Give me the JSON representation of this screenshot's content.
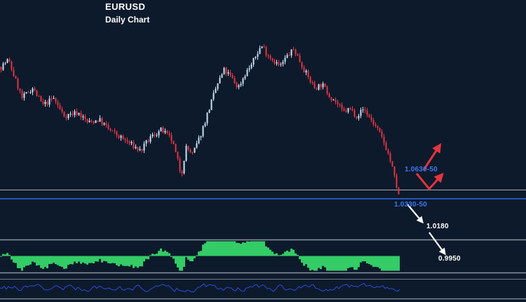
{
  "title": {
    "symbol": "EURUSD",
    "timeframe": "Daily Chart"
  },
  "labels": {
    "resistance": "1.0630-50",
    "support": "1.0330-50",
    "target1": "1.0180",
    "target2": "0.9950"
  },
  "colors": {
    "background": "#0d1a2b",
    "bull_candle": "#c7e2f8",
    "bear_candle": "#e23440",
    "histogram": "#33cc66",
    "bottom_line": "#2c4bd8",
    "support_line": "#2e6be6",
    "grid_line": "#8b94a1",
    "light_line": "#c2c9d4",
    "label_blue": "#3b76f0",
    "label_white": "#ffffff",
    "arrow_red": "#e23440",
    "arrow_white": "#ffffff",
    "title_text": "#ffffff"
  },
  "chart_data": {
    "type": "candlestick",
    "symbol": "EURUSD",
    "timeframe": "daily",
    "bar_count": 190,
    "y_axis": {
      "price_max": 1.218,
      "price_min": 1.019
    },
    "price_waypoints": [
      [
        0.0,
        1.1855
      ],
      [
        0.018,
        1.1936
      ],
      [
        0.053,
        1.149
      ],
      [
        0.079,
        1.1611
      ],
      [
        0.105,
        1.1409
      ],
      [
        0.132,
        1.149
      ],
      [
        0.158,
        1.1287
      ],
      [
        0.193,
        1.1328
      ],
      [
        0.219,
        1.1206
      ],
      [
        0.246,
        1.1246
      ],
      [
        0.272,
        1.1125
      ],
      [
        0.298,
        1.1044
      ],
      [
        0.325,
        1.0963
      ],
      [
        0.351,
        1.0881
      ],
      [
        0.377,
        1.1044
      ],
      [
        0.404,
        1.1125
      ],
      [
        0.43,
        1.1003
      ],
      [
        0.447,
        1.0719
      ],
      [
        0.453,
        1.0598
      ],
      [
        0.465,
        1.0922
      ],
      [
        0.482,
        1.0841
      ],
      [
        0.5,
        1.1044
      ],
      [
        0.526,
        1.1409
      ],
      [
        0.544,
        1.1652
      ],
      [
        0.561,
        1.1814
      ],
      [
        0.579,
        1.1733
      ],
      [
        0.596,
        1.1611
      ],
      [
        0.614,
        1.1774
      ],
      [
        0.632,
        1.1895
      ],
      [
        0.649,
        1.2058
      ],
      [
        0.658,
        1.2098
      ],
      [
        0.667,
        1.2017
      ],
      [
        0.684,
        1.1936
      ],
      [
        0.702,
        1.1855
      ],
      [
        0.719,
        1.1976
      ],
      [
        0.737,
        1.2058
      ],
      [
        0.754,
        1.1895
      ],
      [
        0.772,
        1.1733
      ],
      [
        0.789,
        1.1611
      ],
      [
        0.807,
        1.1652
      ],
      [
        0.825,
        1.153
      ],
      [
        0.842,
        1.1449
      ],
      [
        0.86,
        1.1328
      ],
      [
        0.877,
        1.1368
      ],
      [
        0.895,
        1.1287
      ],
      [
        0.912,
        1.1368
      ],
      [
        0.93,
        1.1246
      ],
      [
        0.947,
        1.1125
      ],
      [
        0.965,
        1.0963
      ],
      [
        0.974,
        1.0841
      ],
      [
        0.982,
        1.0719
      ],
      [
        0.991,
        1.0545
      ],
      [
        1.0,
        1.036
      ]
    ],
    "key_levels": [
      {
        "label": "1.0630-50",
        "price": 1.063,
        "role": "resistance"
      },
      {
        "label": "1.0330-50",
        "price": 1.033,
        "role": "support"
      },
      {
        "label": "1.0180",
        "price": 1.018,
        "role": "downside target"
      },
      {
        "label": "0.9950",
        "price": 0.995,
        "role": "downside target"
      }
    ],
    "indicator_panels": [
      {
        "type": "histogram",
        "name": "momentum-oscillator",
        "color": "#33cc66"
      },
      {
        "type": "line",
        "name": "secondary-oscillator",
        "color": "#2c4bd8"
      }
    ],
    "arrows": [
      {
        "color": "red",
        "direction": "up",
        "near_label": "1.0630-50"
      },
      {
        "color": "red",
        "direction": "down-then-up",
        "near_label": "1.0630-50"
      },
      {
        "color": "white",
        "direction": "down",
        "points_to": "1.0180"
      },
      {
        "color": "white",
        "direction": "down",
        "points_to": "0.9950"
      }
    ]
  }
}
